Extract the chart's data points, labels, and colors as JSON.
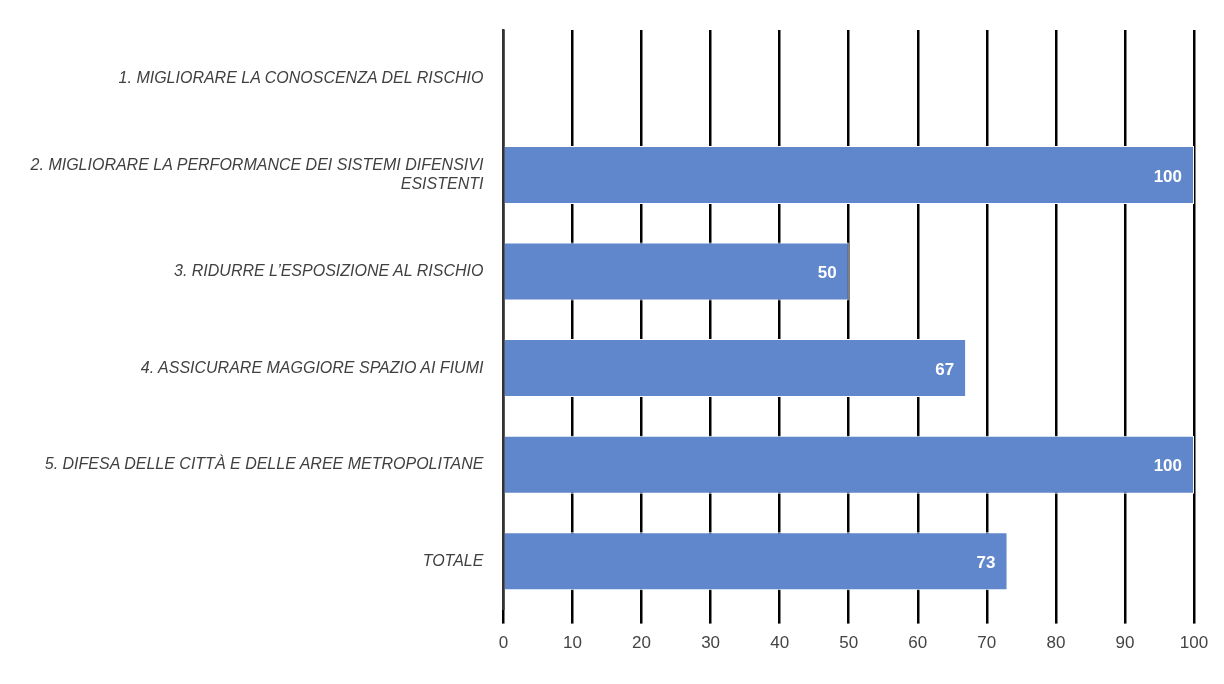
{
  "chart_data": {
    "type": "bar",
    "orientation": "horizontal",
    "categories": [
      "1. MIGLIORARE LA CONOSCENZA DEL RISCHIO",
      "2. MIGLIORARE LA PERFORMANCE DEI SISTEMI DIFENSIVI ESISTENTI",
      "3. RIDURRE L’ESPOSIZIONE AL RISCHIO",
      "4. ASSICURARE MAGGIORE SPAZIO AI FIUMI",
      "5. DIFESA DELLE CITTÀ E DELLE AREE METROPOLITANE",
      "TOTALE"
    ],
    "values": [
      null,
      100,
      50,
      67,
      100,
      73
    ],
    "color": "#6086cc",
    "xlim": [
      0,
      100
    ],
    "xticks": [
      0,
      10,
      20,
      30,
      40,
      50,
      60,
      70,
      80,
      90,
      100
    ],
    "grid": "x",
    "data_labels": true
  }
}
